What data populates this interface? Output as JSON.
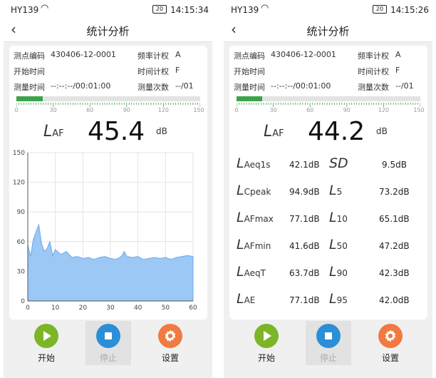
{
  "colors": {
    "gauge_fill": "#3da34a",
    "area_fill": "#9cc8f5",
    "area_stroke": "#6aa8ec",
    "play": "#7cb627",
    "stop": "#2a8fd6",
    "gear": "#f07a41"
  },
  "screens": [
    {
      "status": {
        "carrier": "HY139",
        "battery": "20",
        "time": "14:15:34"
      },
      "title": "统计分析",
      "info": [
        {
          "label": "测点编码",
          "value": "430406-12-0001"
        },
        {
          "label": "频率计权",
          "value": "A"
        },
        {
          "label": "开始时间",
          "value": ""
        },
        {
          "label": "时间计权",
          "value": "F"
        },
        {
          "label": "测量时间",
          "value": "--:--:--/00:01:00"
        },
        {
          "label": "测量次数",
          "value": "--/01"
        }
      ],
      "gauge": {
        "value": 45.4,
        "max": 150,
        "ticks": [
          "0",
          "30",
          "60",
          "90",
          "120",
          "150"
        ]
      },
      "reading": {
        "symbol": "L",
        "sub": "AF",
        "value": "45.4",
        "unit": "dB"
      },
      "buttons": {
        "start": "开始",
        "stop": "停止",
        "settings": "设置"
      }
    },
    {
      "status": {
        "carrier": "HY139",
        "battery": "20",
        "time": "14:15:26"
      },
      "title": "统计分析",
      "info": [
        {
          "label": "测点编码",
          "value": "430406-12-0001"
        },
        {
          "label": "频率计权",
          "value": "A"
        },
        {
          "label": "开始时间",
          "value": ""
        },
        {
          "label": "时间计权",
          "value": "F"
        },
        {
          "label": "测量时间",
          "value": "--:--:--/00:01:00"
        },
        {
          "label": "测量次数",
          "value": "--/01"
        }
      ],
      "gauge": {
        "value": 44.2,
        "max": 150,
        "ticks": [
          "0",
          "30",
          "60",
          "90",
          "120",
          "150"
        ]
      },
      "reading": {
        "symbol": "L",
        "sub": "AF",
        "value": "44.2",
        "unit": "dB"
      },
      "stats": [
        {
          "lsym": "L",
          "lsub": "Aeq1s",
          "lval": "42.1dB",
          "rsym": "SD",
          "rsub": "",
          "rval": "9.5dB"
        },
        {
          "lsym": "L",
          "lsub": "Cpeak",
          "lval": "94.9dB",
          "rsym": "L",
          "rsub": "5",
          "rval": "73.2dB"
        },
        {
          "lsym": "L",
          "lsub": "AFmax",
          "lval": "77.1dB",
          "rsym": "L",
          "rsub": "10",
          "rval": "65.1dB"
        },
        {
          "lsym": "L",
          "lsub": "AFmin",
          "lval": "41.6dB",
          "rsym": "L",
          "rsub": "50",
          "rval": "47.2dB"
        },
        {
          "lsym": "L",
          "lsub": "AeqT",
          "lval": "63.7dB",
          "rsym": "L",
          "rsub": "90",
          "rval": "42.3dB"
        },
        {
          "lsym": "L",
          "lsub": "AE",
          "lval": "77.1dB",
          "rsym": "L",
          "rsub": "95",
          "rval": "42.0dB"
        }
      ],
      "buttons": {
        "start": "开始",
        "stop": "停止",
        "settings": "设置"
      }
    }
  ],
  "chart_data": {
    "type": "area",
    "x": [
      0,
      1,
      2,
      3,
      4,
      5,
      6,
      7,
      8,
      9,
      10,
      12,
      14,
      16,
      18,
      20,
      22,
      24,
      26,
      28,
      30,
      32,
      34,
      35,
      36,
      38,
      40,
      42,
      44,
      46,
      48,
      50,
      52,
      54,
      56,
      58,
      60
    ],
    "y": [
      57,
      45,
      62,
      70,
      77,
      58,
      50,
      53,
      60,
      46,
      52,
      47,
      50,
      44,
      45,
      43,
      44,
      42,
      44,
      45,
      43,
      42,
      45,
      50,
      45,
      44,
      45,
      42,
      43,
      44,
      43,
      44,
      42,
      44,
      45,
      46,
      45
    ],
    "xticks": [
      "0",
      "10",
      "20",
      "30",
      "40",
      "50",
      "60"
    ],
    "yticks": [
      "0",
      "30",
      "60",
      "90",
      "120",
      "150"
    ],
    "xlim": [
      0,
      60
    ],
    "ylim": [
      0,
      150
    ],
    "grid": true
  }
}
